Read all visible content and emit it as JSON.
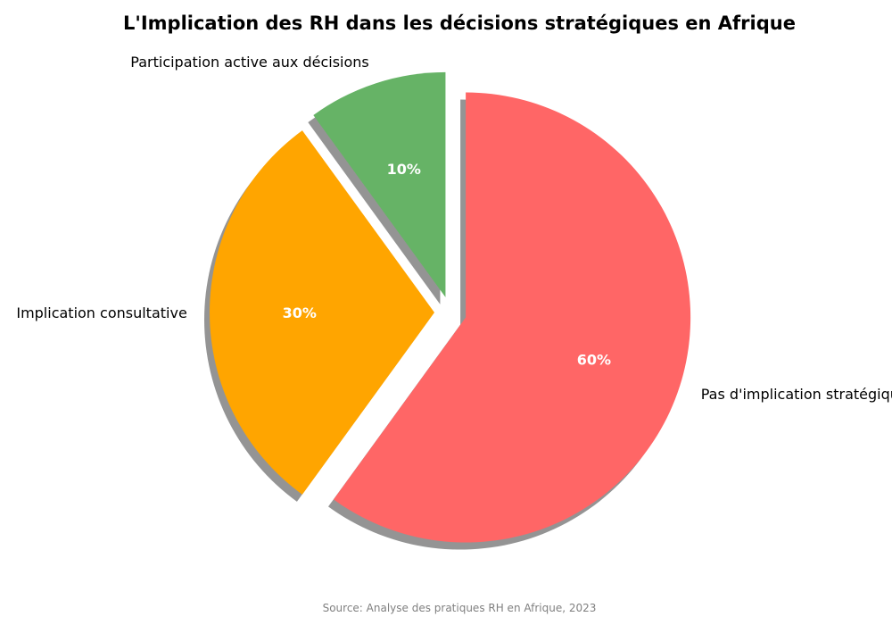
{
  "chart_data": {
    "type": "pie",
    "title": "L'Implication des RH dans les décisions stratégiques en Afrique",
    "categories": [
      "Pas d'implication stratégique",
      "Implication consultative",
      "Participation active aux décisions"
    ],
    "values": [
      60,
      30,
      10
    ],
    "value_labels": [
      "60%",
      "30%",
      "10%"
    ],
    "colors": [
      "#ff6666",
      "#ffa500",
      "#66b366"
    ],
    "start_angle": 90,
    "direction": "clockwise",
    "shadow": true,
    "exploded": [
      true,
      true,
      true
    ],
    "source": "Source: Analyse des pratiques RH en Afrique, 2023"
  }
}
